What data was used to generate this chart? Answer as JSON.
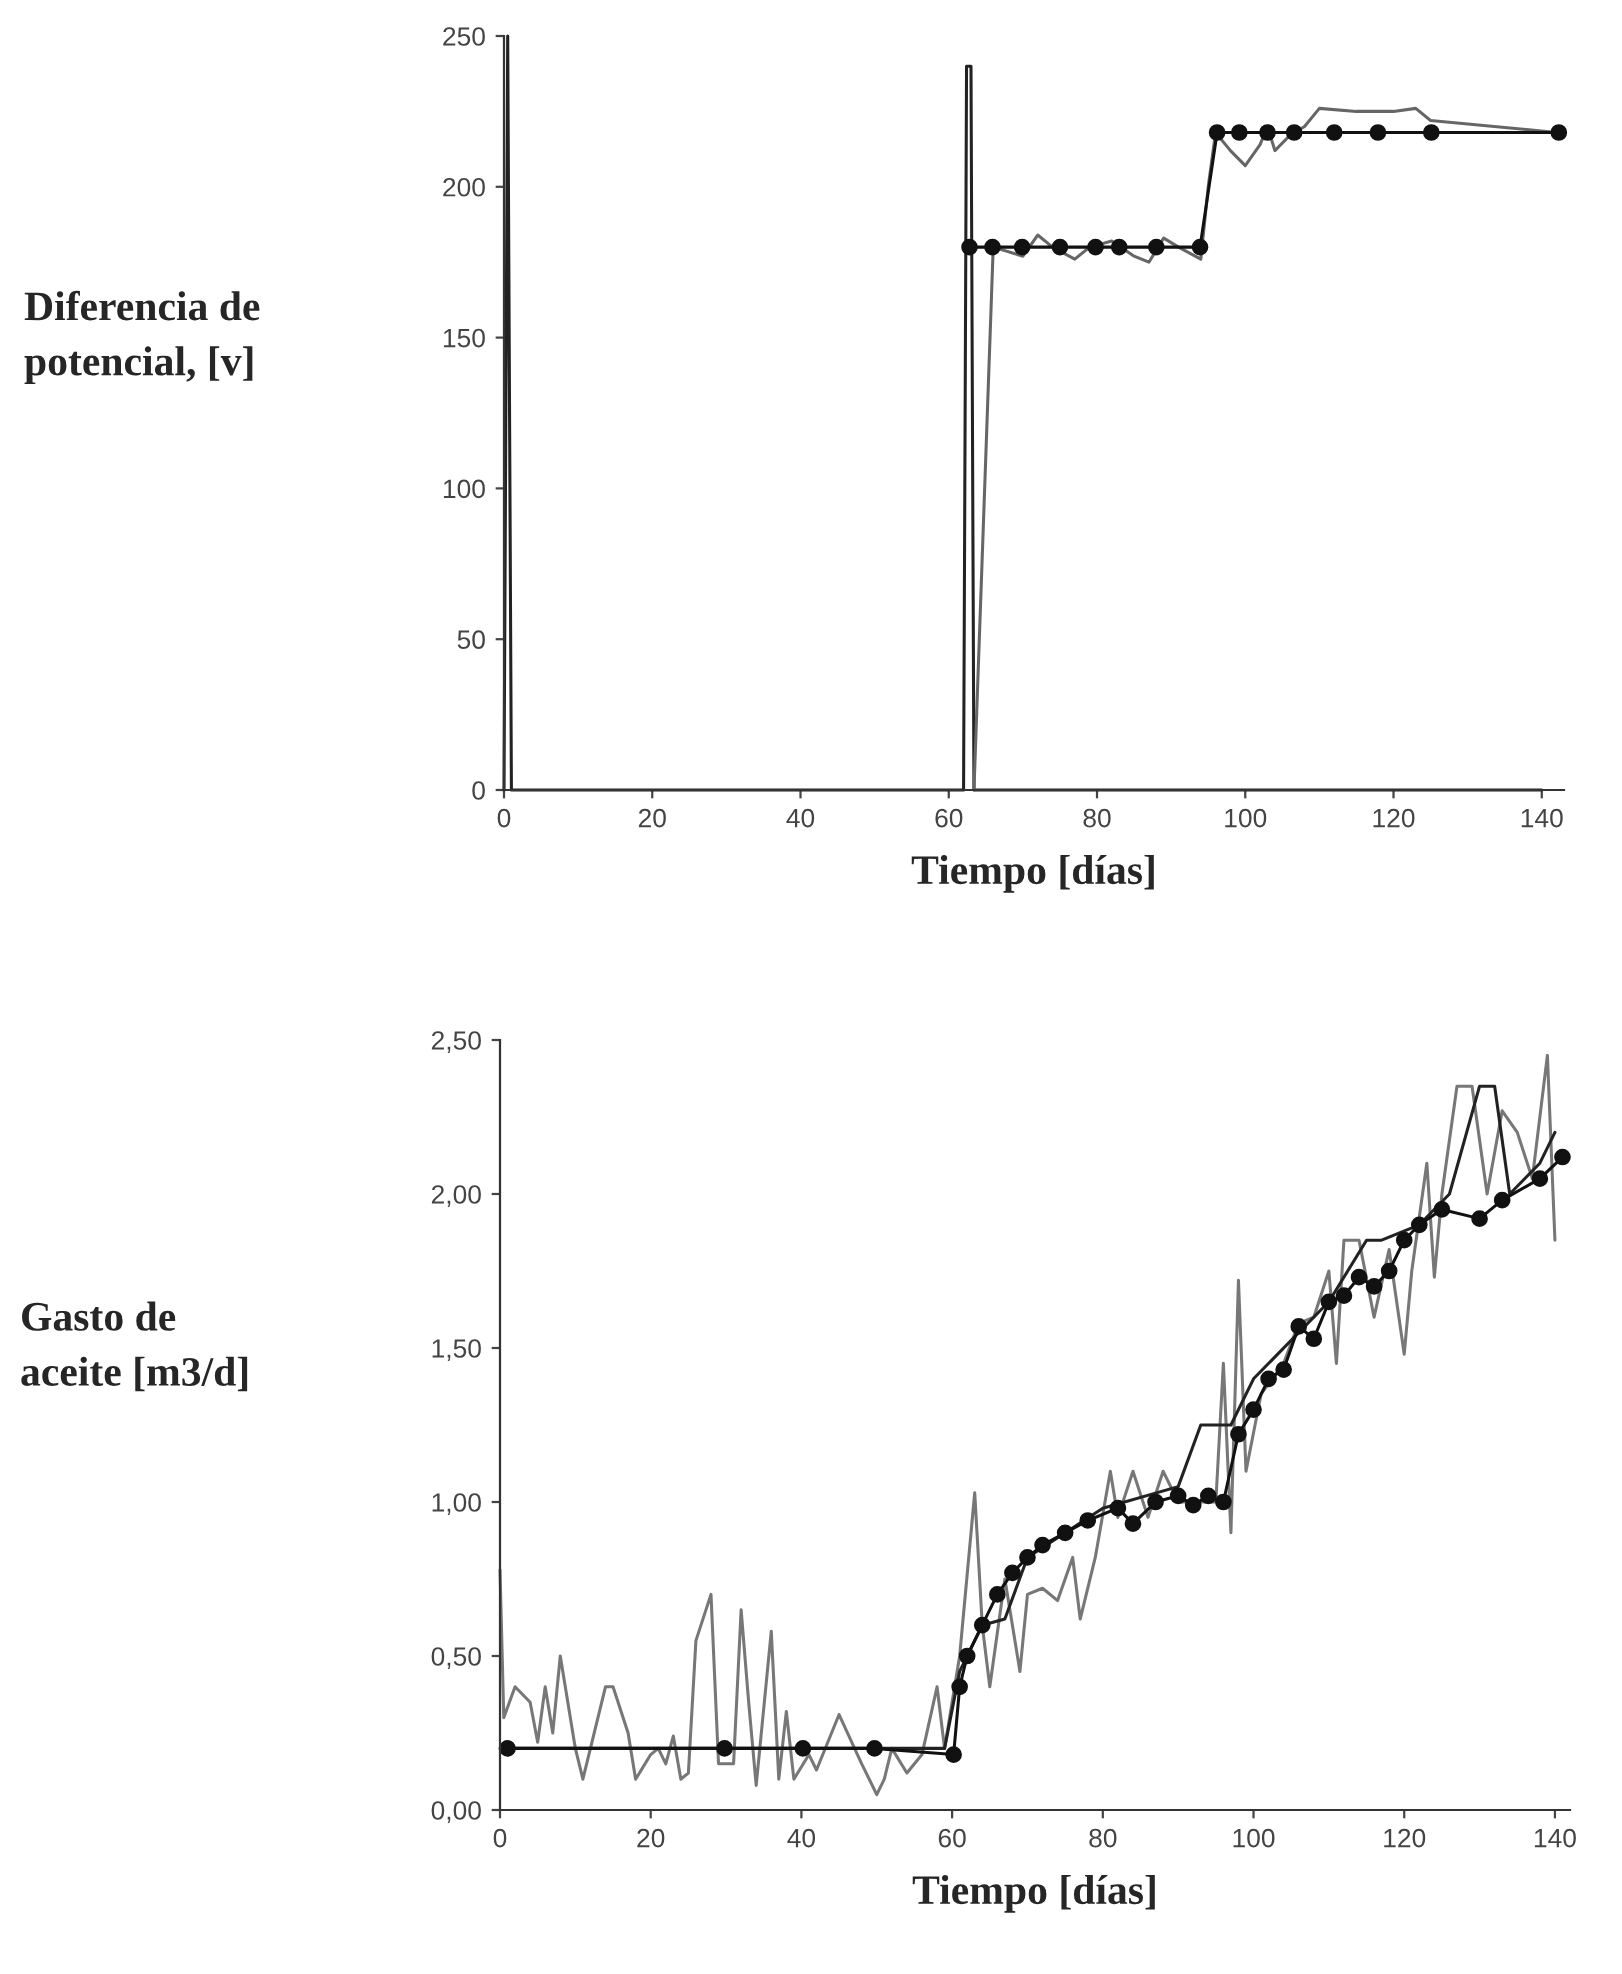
{
  "chart_data": [
    {
      "type": "line",
      "ylabel": "Diferencia de\npotencial, [v]",
      "xlabel": "Tiempo [días]",
      "xlim": [
        0,
        143
      ],
      "ylim": [
        0,
        250
      ],
      "xticks": [
        0,
        20,
        40,
        60,
        80,
        100,
        120,
        140
      ],
      "yticks": [
        0,
        50,
        100,
        150,
        200,
        250
      ],
      "grid": false,
      "legend": false,
      "series": [
        {
          "color": "#222222",
          "marker": "none",
          "x": [
            0,
            0.5,
            1,
            62,
            62.4,
            63,
            63.4,
            100,
            140
          ],
          "values": [
            0,
            250,
            0,
            0,
            240,
            240,
            0,
            0,
            0
          ]
        },
        {
          "color": "#666666",
          "marker": "none",
          "x": [
            63.4,
            66,
            70,
            72,
            74,
            77,
            79,
            82,
            85,
            87,
            89,
            91,
            94,
            95,
            96,
            98,
            100,
            102,
            103,
            104,
            106,
            108,
            110,
            115,
            120,
            123,
            125,
            142
          ],
          "values": [
            0,
            180,
            177,
            184,
            180,
            176,
            180,
            182,
            177,
            175,
            183,
            180,
            176,
            200,
            218,
            212,
            207,
            214,
            220,
            212,
            217,
            220,
            226,
            225,
            225,
            226,
            222,
            218
          ]
        },
        {
          "color": "#111111",
          "marker": "circle",
          "x": [
            62.8,
            65.9,
            69.9,
            75,
            79.8,
            83,
            88,
            93.9,
            96.2,
            99.2,
            103,
            106.6,
            112,
            117.9,
            125.1,
            142.3
          ],
          "values": [
            180,
            180,
            180,
            180,
            180,
            180,
            180,
            180,
            218,
            218,
            218,
            218,
            218,
            218,
            218,
            218
          ]
        }
      ]
    },
    {
      "type": "line",
      "ylabel": "Gasto de\naceite [m3/d]",
      "xlabel": "Tiempo [días]",
      "xlim": [
        0,
        142
      ],
      "ylim": [
        0,
        2.5
      ],
      "xticks": [
        0,
        20,
        40,
        60,
        80,
        100,
        120,
        140
      ],
      "yticks": [
        {
          "value": 0,
          "label": "0,00"
        },
        {
          "value": 0.5,
          "label": "0,50"
        },
        {
          "value": 1,
          "label": "1,00"
        },
        {
          "value": 1.5,
          "label": "1,50"
        },
        {
          "value": 2,
          "label": "2,00"
        },
        {
          "value": 2.5,
          "label": "2,50"
        }
      ],
      "grid": false,
      "legend": false,
      "series": [
        {
          "color": "#777777",
          "marker": "none",
          "x": [
            0,
            0.5,
            2,
            4,
            5,
            6,
            7,
            8,
            10,
            11,
            12,
            14,
            15,
            17,
            18,
            20,
            21,
            22,
            23,
            24,
            25,
            26,
            28,
            29,
            31,
            32,
            33,
            34,
            36,
            37,
            38,
            39,
            41,
            42,
            45,
            48,
            50,
            51,
            52,
            54,
            56,
            58,
            59,
            61,
            63,
            64,
            65,
            67,
            69,
            70,
            72,
            74,
            76,
            77,
            79,
            81,
            82,
            84,
            86,
            88,
            90,
            95,
            96,
            97,
            98,
            99,
            101,
            104,
            106,
            108,
            110,
            111,
            112,
            114,
            116,
            118,
            120,
            121,
            123,
            124,
            125,
            127,
            129,
            131,
            133,
            135,
            137,
            139,
            140
          ],
          "values": [
            0.78,
            0.3,
            0.4,
            0.35,
            0.22,
            0.4,
            0.25,
            0.5,
            0.2,
            0.1,
            0.2,
            0.4,
            0.4,
            0.25,
            0.1,
            0.18,
            0.2,
            0.15,
            0.24,
            0.1,
            0.12,
            0.55,
            0.7,
            0.15,
            0.15,
            0.65,
            0.35,
            0.08,
            0.58,
            0.1,
            0.32,
            0.1,
            0.18,
            0.13,
            0.31,
            0.15,
            0.05,
            0.1,
            0.2,
            0.12,
            0.18,
            0.4,
            0.2,
            0.5,
            1.03,
            0.6,
            0.4,
            0.75,
            0.45,
            0.7,
            0.72,
            0.68,
            0.82,
            0.62,
            0.82,
            1.1,
            0.95,
            1.1,
            0.95,
            1.1,
            1.0,
            1.0,
            1.45,
            0.9,
            1.72,
            1.1,
            1.35,
            1.45,
            1.58,
            1.6,
            1.75,
            1.45,
            1.85,
            1.85,
            1.6,
            1.82,
            1.48,
            1.75,
            2.1,
            1.73,
            2.0,
            2.35,
            2.35,
            2.0,
            2.27,
            2.2,
            2.05,
            2.45,
            1.85
          ]
        },
        {
          "color": "#222222",
          "marker": "none",
          "x": [
            0,
            59,
            61,
            64,
            67,
            70,
            80,
            90,
            93,
            97,
            100,
            110,
            115,
            117,
            122,
            126,
            130,
            132,
            134,
            138,
            140
          ],
          "values": [
            0.2,
            0.2,
            0.45,
            0.6,
            0.62,
            0.82,
            0.98,
            1.05,
            1.25,
            1.25,
            1.4,
            1.65,
            1.85,
            1.85,
            1.9,
            2.0,
            2.35,
            2.35,
            2.0,
            2.1,
            2.2
          ]
        },
        {
          "color": "#111111",
          "marker": "circle",
          "x": [
            1,
            29.8,
            40.2,
            49.7,
            60.2,
            61,
            62,
            64,
            66,
            68,
            70,
            72,
            75,
            78,
            82,
            84,
            87,
            90,
            92,
            94,
            96,
            98,
            100,
            102,
            104,
            106,
            108,
            110,
            112,
            114,
            116,
            118,
            120,
            122,
            125,
            130,
            133,
            138,
            141
          ],
          "values": [
            0.2,
            0.2,
            0.2,
            0.2,
            0.18,
            0.4,
            0.5,
            0.6,
            0.7,
            0.77,
            0.82,
            0.86,
            0.9,
            0.94,
            0.98,
            0.93,
            1.0,
            1.02,
            0.99,
            1.02,
            1.0,
            1.22,
            1.3,
            1.4,
            1.43,
            1.57,
            1.53,
            1.65,
            1.67,
            1.73,
            1.7,
            1.75,
            1.85,
            1.9,
            1.95,
            1.92,
            1.98,
            2.05,
            2.12
          ]
        }
      ]
    }
  ]
}
